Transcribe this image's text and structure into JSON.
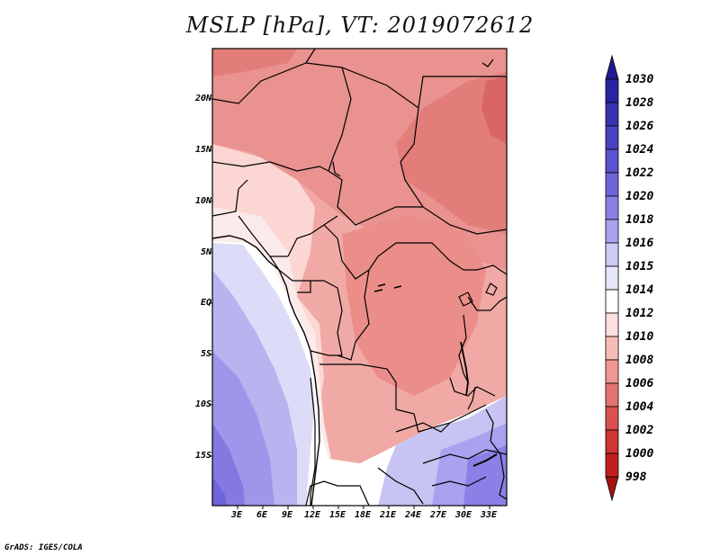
{
  "title": "MSLP [hPa], VT: 2019072612",
  "credit": "GrADS: IGES/COLA",
  "lat_labels": [
    "20N",
    "15N",
    "10N",
    "5N",
    "EQ",
    "5S",
    "10S",
    "15S"
  ],
  "lon_labels": [
    "3E",
    "6E",
    "9E",
    "12E",
    "15E",
    "18E",
    "21E",
    "24E",
    "27E",
    "30E",
    "33E"
  ],
  "colorbar": {
    "levels": [
      "1030",
      "1028",
      "1026",
      "1024",
      "1022",
      "1020",
      "1018",
      "1016",
      "1015",
      "1014",
      "1012",
      "1010",
      "1008",
      "1006",
      "1004",
      "1002",
      "1000",
      "998"
    ],
    "colors": [
      "#1f1a8f",
      "#28239f",
      "#3a33b0",
      "#4a42c0",
      "#5b52cf",
      "#7064da",
      "#8a80e6",
      "#a9a2ef",
      "#cdcaf6",
      "#e6e6fb",
      "#ffffff",
      "#fde0de",
      "#f8bcb8",
      "#ef9792",
      "#e37471",
      "#d95250",
      "#cf3533",
      "#c01f1f",
      "#a31313"
    ]
  },
  "map": {
    "region": "Central Africa",
    "lat_range": [
      -20,
      24
    ],
    "lon_range": [
      0,
      35
    ]
  }
}
